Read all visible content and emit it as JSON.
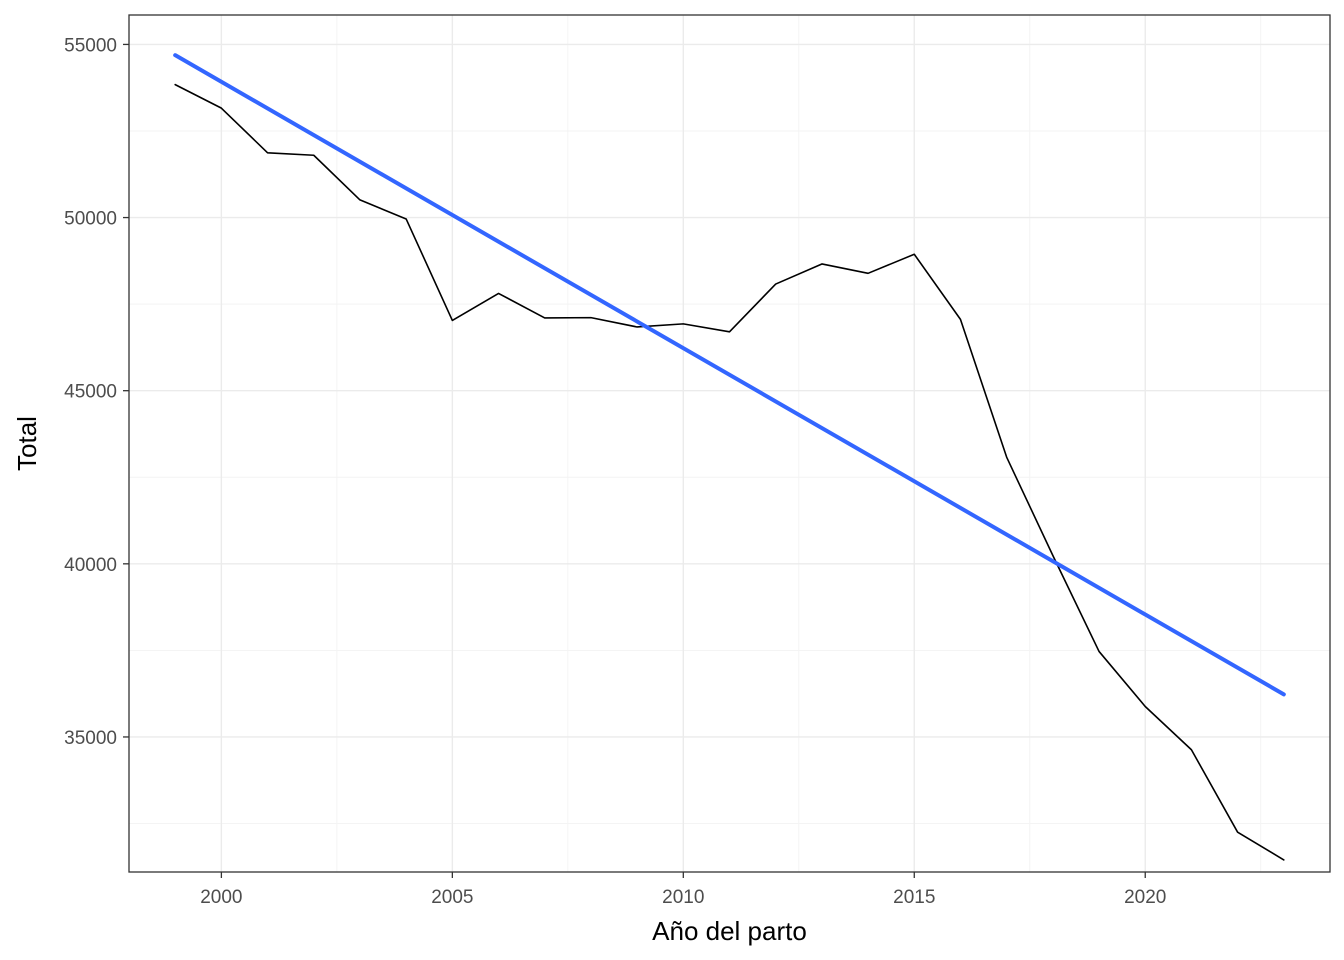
{
  "chart_data": {
    "type": "line",
    "title": "",
    "xlabel": "Año del parto",
    "ylabel": "Total",
    "xlim": [
      1998,
      2024
    ],
    "ylim": [
      31100,
      55850
    ],
    "x_ticks": [
      2000,
      2005,
      2010,
      2015,
      2020
    ],
    "y_ticks": [
      35000,
      40000,
      45000,
      50000,
      55000
    ],
    "grid": true,
    "series": [
      {
        "color": "#000000",
        "style": "line",
        "x": [
          1999,
          2000,
          2001,
          2002,
          2003,
          2004,
          2005,
          2006,
          2007,
          2008,
          2009,
          2010,
          2011,
          2012,
          2013,
          2014,
          2015,
          2016,
          2017,
          2018,
          2019,
          2020,
          2021,
          2022,
          2023
        ],
        "values": [
          53840,
          53160,
          51870,
          51800,
          50510,
          49960,
          47030,
          47810,
          47100,
          47110,
          46840,
          46930,
          46700,
          48080,
          48660,
          48390,
          48940,
          47060,
          43080,
          40240,
          37470,
          35880,
          34630,
          32250,
          31450
        ]
      },
      {
        "color": "#3366ff",
        "style": "trend",
        "x": [
          1999,
          2023
        ],
        "values": [
          54690,
          36230
        ]
      }
    ]
  }
}
